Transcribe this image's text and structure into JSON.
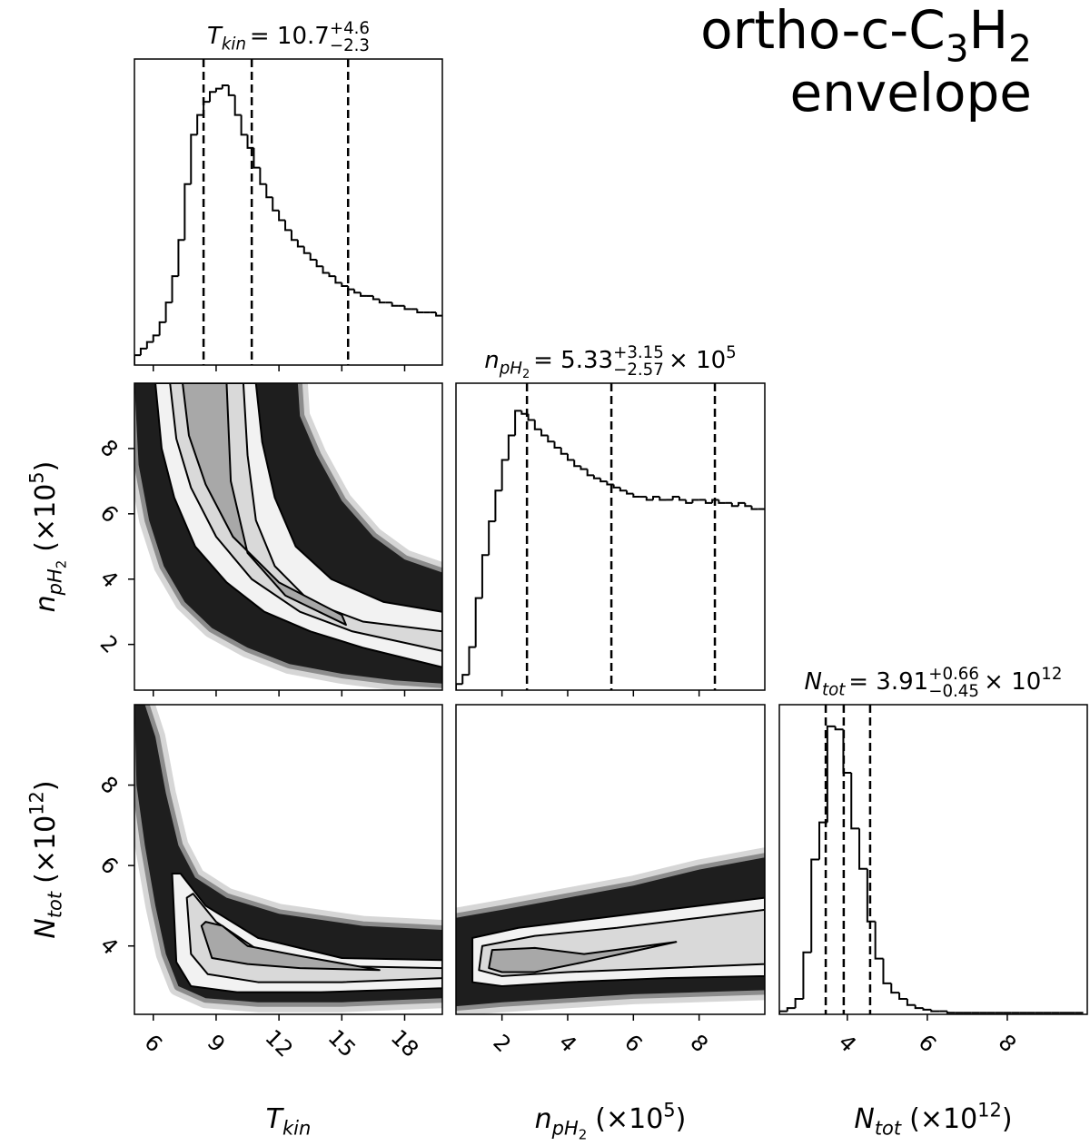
{
  "title": {
    "parts": [
      "ortho-c-C",
      "3",
      "H",
      "2"
    ],
    "line2": "envelope"
  },
  "chart_data": [
    {
      "type": "histogram",
      "title": {
        "symbol": "T",
        "symbol_sub": "kin",
        "text": "= 10.7",
        "upper": "+4.6",
        "lower": "−2.3"
      },
      "bins": [
        5.1,
        5.4,
        5.7,
        6.0,
        6.3,
        6.6,
        6.9,
        7.2,
        7.5,
        7.8,
        8.1,
        8.4,
        8.7,
        9.0,
        9.3,
        9.6,
        9.9,
        10.2,
        10.5,
        10.8,
        11.1,
        11.4,
        11.7,
        12.0,
        12.3,
        12.6,
        12.9,
        13.2,
        13.5,
        13.8,
        14.1,
        14.4,
        14.7,
        15.0,
        15.3,
        15.6,
        15.9,
        16.2,
        16.5,
        16.8,
        17.1,
        17.4,
        17.7,
        18.0,
        18.3,
        18.6,
        18.9,
        19.2,
        19.5,
        19.8
      ],
      "values": [
        0.03,
        0.05,
        0.07,
        0.09,
        0.13,
        0.19,
        0.27,
        0.38,
        0.55,
        0.7,
        0.76,
        0.8,
        0.83,
        0.84,
        0.85,
        0.82,
        0.76,
        0.7,
        0.66,
        0.6,
        0.55,
        0.51,
        0.47,
        0.44,
        0.41,
        0.38,
        0.36,
        0.34,
        0.32,
        0.3,
        0.28,
        0.27,
        0.25,
        0.24,
        0.23,
        0.22,
        0.21,
        0.21,
        0.2,
        0.19,
        0.19,
        0.18,
        0.18,
        0.17,
        0.17,
        0.16,
        0.16,
        0.16,
        0.15
      ],
      "quantiles": [
        8.4,
        10.7,
        15.3
      ],
      "xlim": [
        5.1,
        19.8
      ],
      "xticks": [
        6,
        9,
        12,
        15,
        18
      ],
      "ylim": [
        0,
        0.93
      ],
      "color": "#000000"
    },
    {
      "type": "contour",
      "xlim": [
        5.1,
        19.8
      ],
      "xticks": [
        6,
        9,
        12,
        15,
        18
      ],
      "ylim": [
        0.6,
        10.0
      ],
      "yticks": [
        2,
        4,
        6,
        8
      ],
      "ylabel": {
        "symbol": "n",
        "symbol_sub": "pH",
        "symbol_subsub": "2",
        "unit": "(×10",
        "unit_sup": "5",
        "unit_end": ")"
      },
      "cloud": {
        "x": [
          5.1,
          5.3,
          5.8,
          6.5,
          7.5,
          8.8,
          10.5,
          12.5,
          15,
          17.5,
          19.8,
          19.8,
          18,
          16.5,
          15,
          13.8,
          13,
          12.9,
          5.1
        ],
        "y": [
          10.0,
          7.5,
          5.8,
          4.4,
          3.3,
          2.5,
          1.9,
          1.4,
          1.1,
          0.9,
          0.8,
          4.2,
          4.6,
          5.3,
          6.4,
          7.8,
          9.0,
          10.0,
          10.0
        ]
      },
      "contours": [
        {
          "x": [
            6.1,
            6.4,
            7.0,
            8.0,
            9.5,
            11.3,
            13.5,
            16,
            19.8,
            19.8,
            17,
            14.5,
            12.8,
            11.8,
            11.2,
            10.9
          ],
          "y": [
            10.0,
            8.0,
            6.5,
            5.0,
            3.9,
            3.0,
            2.4,
            1.9,
            1.3,
            3.0,
            3.3,
            4.0,
            5.0,
            6.5,
            8.2,
            10.0
          ]
        },
        {
          "x": [
            6.8,
            7.1,
            7.8,
            9.0,
            10.7,
            13,
            15.5,
            19.8,
            19.8,
            16,
            13.5,
            11.8,
            10.9,
            10.5,
            10.3
          ],
          "y": [
            10.0,
            8.3,
            6.8,
            5.3,
            4.0,
            3.0,
            2.4,
            1.8,
            2.4,
            2.7,
            3.3,
            4.4,
            5.8,
            7.8,
            10.0
          ]
        },
        {
          "x": [
            7.4,
            7.7,
            8.5,
            9.8,
            12,
            15,
            15.2,
            12.3,
            10.5,
            9.7,
            9.5
          ],
          "y": [
            10.0,
            8.4,
            6.9,
            5.3,
            3.9,
            2.9,
            2.6,
            3.5,
            4.8,
            7.0,
            10.0
          ]
        }
      ],
      "cloud_color": "#1e1e1e",
      "fills": [
        "#f2f2f2",
        "#d9d9d9",
        "#a8a8a8"
      ],
      "line_color": "#000000"
    },
    {
      "type": "histogram",
      "title": {
        "symbol": "n",
        "symbol_sub": "pH",
        "symbol_subsub": "2",
        "text": "= 5.33",
        "upper": "+3.15",
        "lower": "−2.57",
        "scale": "× 10",
        "scale_sup": "5"
      },
      "bins": [
        0.6,
        0.8,
        1.0,
        1.2,
        1.4,
        1.6,
        1.8,
        2.0,
        2.2,
        2.4,
        2.6,
        2.8,
        3.0,
        3.2,
        3.4,
        3.6,
        3.8,
        4.0,
        4.2,
        4.4,
        4.6,
        4.8,
        5.0,
        5.2,
        5.4,
        5.6,
        5.8,
        6.0,
        6.2,
        6.4,
        6.6,
        6.8,
        7.0,
        7.2,
        7.4,
        7.6,
        7.8,
        8.0,
        8.2,
        8.4,
        8.6,
        8.8,
        9.0,
        9.2,
        9.4,
        9.6,
        9.8,
        10.0
      ],
      "values": [
        0.02,
        0.05,
        0.14,
        0.3,
        0.44,
        0.55,
        0.65,
        0.75,
        0.83,
        0.91,
        0.9,
        0.88,
        0.85,
        0.83,
        0.81,
        0.79,
        0.77,
        0.75,
        0.73,
        0.72,
        0.7,
        0.69,
        0.68,
        0.67,
        0.66,
        0.65,
        0.64,
        0.63,
        0.63,
        0.62,
        0.63,
        0.62,
        0.62,
        0.63,
        0.62,
        0.61,
        0.62,
        0.62,
        0.61,
        0.62,
        0.61,
        0.61,
        0.6,
        0.61,
        0.6,
        0.59,
        0.59
      ],
      "quantiles": [
        2.76,
        5.33,
        8.48
      ],
      "xlim": [
        0.6,
        10.0
      ],
      "xticks": [
        2,
        4,
        6,
        8
      ],
      "ylim": [
        0,
        1
      ],
      "color": "#000000"
    },
    {
      "type": "contour",
      "xlim": [
        5.1,
        19.8
      ],
      "xticks": [
        6,
        9,
        12,
        15,
        18
      ],
      "ylim": [
        2.3,
        10.0
      ],
      "yticks": [
        4,
        6,
        8
      ],
      "xlabel": {
        "symbol": "T",
        "symbol_sub": "kin"
      },
      "ylabel": {
        "symbol": "N",
        "symbol_sub": "tot",
        "unit": "(×10",
        "unit_sup": "12",
        "unit_end": ")"
      },
      "cloud": {
        "x": [
          5.1,
          5.2,
          5.6,
          6.1,
          6.6,
          7.2,
          8.5,
          11,
          15,
          19.8,
          19.8,
          16,
          12,
          9.5,
          8,
          7.2,
          6.6,
          6.1,
          5.6
        ],
        "y": [
          10.0,
          8.0,
          6.5,
          5.0,
          3.8,
          3.0,
          2.7,
          2.6,
          2.6,
          2.7,
          4.4,
          4.5,
          4.8,
          5.2,
          5.7,
          6.5,
          7.8,
          9.2,
          10.0
        ]
      },
      "contours": [
        {
          "x": [
            6.9,
            7.1,
            7.8,
            10,
            14,
            19.8,
            19.8,
            15,
            11,
            8.5,
            7.3
          ],
          "y": [
            5.8,
            3.6,
            3.0,
            2.85,
            2.85,
            2.95,
            3.65,
            3.7,
            4.2,
            5.0,
            5.8
          ]
        },
        {
          "x": [
            7.6,
            7.8,
            8.6,
            11,
            15,
            19.8,
            19.8,
            14.5,
            11,
            9,
            7.9
          ],
          "y": [
            5.2,
            3.8,
            3.3,
            3.1,
            3.1,
            3.2,
            3.45,
            3.5,
            3.9,
            4.6,
            5.3
          ]
        },
        {
          "x": [
            8.3,
            8.8,
            10.5,
            13,
            16.8,
            13,
            10.5,
            9.3,
            8.5
          ],
          "y": [
            4.5,
            3.7,
            3.55,
            3.45,
            3.4,
            3.75,
            4.0,
            4.5,
            4.6
          ]
        }
      ],
      "cloud_color": "#1e1e1e",
      "fills": [
        "#f2f2f2",
        "#d9d9d9",
        "#a8a8a8"
      ],
      "line_color": "#000000"
    },
    {
      "type": "contour",
      "xlim": [
        0.6,
        10.0
      ],
      "xticks": [
        2,
        4,
        6,
        8
      ],
      "ylim": [
        2.3,
        10.0
      ],
      "xlabel": {
        "symbol": "n",
        "symbol_sub": "pH",
        "symbol_subsub": "2",
        "unit": "(×10",
        "unit_sup": "5",
        "unit_end": ")"
      },
      "cloud": {
        "x": [
          0.6,
          0.6,
          2,
          4,
          6,
          8,
          10,
          10,
          8,
          6,
          4,
          2
        ],
        "y": [
          2.5,
          4.7,
          4.9,
          5.2,
          5.5,
          5.9,
          6.2,
          2.9,
          2.85,
          2.8,
          2.7,
          2.6
        ]
      },
      "contours": [
        {
          "x": [
            1.1,
            1.1,
            2.5,
            5,
            7.5,
            10,
            10,
            7,
            4,
            2
          ],
          "y": [
            3.1,
            4.2,
            4.45,
            4.7,
            4.95,
            5.2,
            3.25,
            3.2,
            3.1,
            3.0
          ]
        },
        {
          "x": [
            1.3,
            1.4,
            3,
            5.5,
            8,
            10,
            10,
            7,
            4,
            2
          ],
          "y": [
            3.4,
            4.0,
            4.25,
            4.45,
            4.7,
            4.9,
            3.55,
            3.45,
            3.35,
            3.25
          ]
        },
        {
          "x": [
            1.6,
            1.7,
            3,
            4.5,
            7.3,
            4.5,
            3,
            2
          ],
          "y": [
            3.45,
            3.9,
            3.95,
            3.8,
            4.1,
            3.6,
            3.35,
            3.35
          ]
        }
      ],
      "cloud_color": "#1e1e1e",
      "fills": [
        "#f2f2f2",
        "#d9d9d9",
        "#a8a8a8"
      ],
      "line_color": "#000000"
    },
    {
      "type": "histogram",
      "title": {
        "symbol": "N",
        "symbol_sub": "tot",
        "text": "= 3.91",
        "upper": "+0.66",
        "lower": "−0.45",
        "scale": "× 10",
        "scale_sup": "12"
      },
      "bins": [
        2.3,
        2.5,
        2.7,
        2.9,
        3.1,
        3.3,
        3.5,
        3.7,
        3.9,
        4.1,
        4.3,
        4.5,
        4.7,
        4.9,
        5.1,
        5.3,
        5.5,
        5.7,
        5.9,
        6.1,
        6.3,
        6.5,
        6.7,
        6.9,
        7.1,
        7.3,
        7.5,
        7.7,
        7.9,
        8.1,
        8.3,
        8.5,
        8.7,
        8.9,
        9.1,
        9.3,
        9.5,
        9.7,
        9.9
      ],
      "values": [
        0.01,
        0.02,
        0.05,
        0.2,
        0.5,
        0.62,
        0.93,
        0.92,
        0.78,
        0.6,
        0.47,
        0.3,
        0.18,
        0.1,
        0.07,
        0.05,
        0.03,
        0.02,
        0.015,
        0.01,
        0.01,
        0.005,
        0.005,
        0.005,
        0.005,
        0.005,
        0.005,
        0.005,
        0.005,
        0.005,
        0.005,
        0.005,
        0.005,
        0.005,
        0.005,
        0.005,
        0.005,
        0.005
      ],
      "quantiles": [
        3.46,
        3.91,
        4.57
      ],
      "xlim": [
        2.3,
        10.0
      ],
      "xticks": [
        4,
        6,
        8
      ],
      "ylim": [
        0,
        1
      ],
      "xlabel": {
        "symbol": "N",
        "symbol_sub": "tot",
        "unit": "(×10",
        "unit_sup": "12",
        "unit_end": ")"
      },
      "color": "#000000"
    }
  ]
}
